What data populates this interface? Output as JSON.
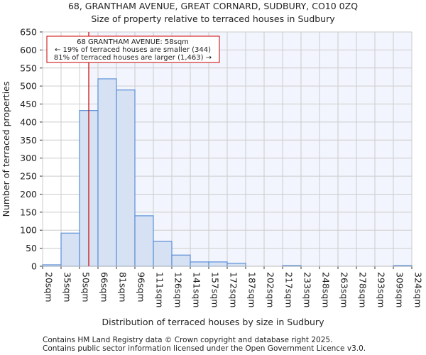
{
  "chart_data": {
    "type": "bar",
    "title": "68, GRANTHAM AVENUE, GREAT CORNARD, SUDBURY, CO10 0ZQ",
    "subtitle": "Size of property relative to terraced houses in Sudbury",
    "xlabel": "Distribution of terraced houses by size in Sudbury",
    "ylabel": "Number of terraced properties",
    "ylim": [
      0,
      650
    ],
    "yticks": [
      0,
      50,
      100,
      150,
      200,
      250,
      300,
      350,
      400,
      450,
      500,
      550,
      600,
      650
    ],
    "bin_edges": [
      20,
      35,
      50,
      66,
      81,
      96,
      111,
      126,
      141,
      157,
      172,
      187,
      202,
      217,
      233,
      248,
      263,
      278,
      293,
      309,
      324
    ],
    "xtick_labels": [
      "20sqm",
      "35sqm",
      "50sqm",
      "66sqm",
      "81sqm",
      "96sqm",
      "111sqm",
      "126sqm",
      "141sqm",
      "157sqm",
      "172sqm",
      "187sqm",
      "202sqm",
      "217sqm",
      "233sqm",
      "248sqm",
      "263sqm",
      "278sqm",
      "293sqm",
      "309sqm",
      "324sqm"
    ],
    "values": [
      4,
      92,
      432,
      520,
      489,
      140,
      69,
      31,
      12,
      12,
      8,
      0,
      0,
      2,
      0,
      0,
      0,
      0,
      0,
      2
    ],
    "property_marker": 58,
    "grid": true,
    "annotation": {
      "line1": "68 GRANTHAM AVENUE: 58sqm",
      "line2": "← 19% of terraced houses are smaller (344)",
      "line3": "81% of terraced houses are larger (1,463) →"
    },
    "colors": {
      "bar_fill": "#d6e2f3",
      "bar_edge": "#5b8fd6",
      "marker": "#cc0000",
      "highlight_bg": "#f2f5fd",
      "grid": "#cccccc"
    }
  },
  "footer": {
    "line1": "Contains HM Land Registry data © Crown copyright and database right 2025.",
    "line2": "Contains public sector information licensed under the Open Government Licence v3.0."
  }
}
